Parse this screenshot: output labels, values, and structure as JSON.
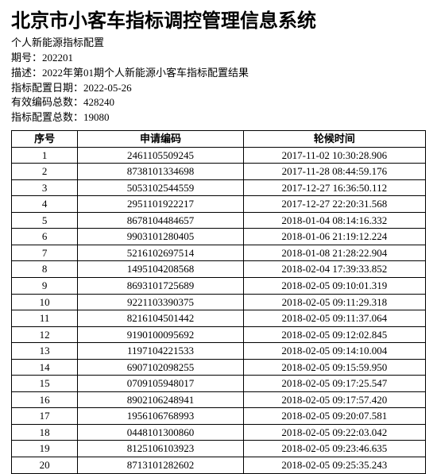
{
  "title": "北京市小客车指标调控管理信息系统",
  "meta": {
    "subtitle": "个人新能源指标配置",
    "period_label": "期号：",
    "period_value": "202201",
    "desc_label": "描述：",
    "desc_value": "2022年第01期个人新能源小客车指标配置结果",
    "date_label": "指标配置日期：",
    "date_value": "2022-05-26",
    "valid_label": "有效编码总数：",
    "valid_value": "428240",
    "total_label": "指标配置总数：",
    "total_value": "19080"
  },
  "table": {
    "columns": [
      "序号",
      "申请编码",
      "轮候时间"
    ],
    "rows": [
      [
        "1",
        "2461105509245",
        "2017-11-02 10:30:28.906"
      ],
      [
        "2",
        "8738101334698",
        "2017-11-28 08:44:59.176"
      ],
      [
        "3",
        "5053102544559",
        "2017-12-27 16:36:50.112"
      ],
      [
        "4",
        "2951101922217",
        "2017-12-27 22:20:31.568"
      ],
      [
        "5",
        "8678104484657",
        "2018-01-04 08:14:16.332"
      ],
      [
        "6",
        "9903101280405",
        "2018-01-06 21:19:12.224"
      ],
      [
        "7",
        "5216102697514",
        "2018-01-08 21:28:22.904"
      ],
      [
        "8",
        "1495104208568",
        "2018-02-04 17:39:33.852"
      ],
      [
        "9",
        "8693101725689",
        "2018-02-05 09:10:01.319"
      ],
      [
        "10",
        "9221103390375",
        "2018-02-05 09:11:29.318"
      ],
      [
        "11",
        "8216104501442",
        "2018-02-05 09:11:37.064"
      ],
      [
        "12",
        "9190100095692",
        "2018-02-05 09:12:02.845"
      ],
      [
        "13",
        "1197104221533",
        "2018-02-05 09:14:10.004"
      ],
      [
        "14",
        "6907102098255",
        "2018-02-05 09:15:59.950"
      ],
      [
        "15",
        "0709105948017",
        "2018-02-05 09:17:25.547"
      ],
      [
        "16",
        "8902106248941",
        "2018-02-05 09:17:57.420"
      ],
      [
        "17",
        "1956106768993",
        "2018-02-05 09:20:07.581"
      ],
      [
        "18",
        "0448101300860",
        "2018-02-05 09:22:03.042"
      ],
      [
        "19",
        "8125106103923",
        "2018-02-05 09:23:46.635"
      ],
      [
        "20",
        "8713101282602",
        "2018-02-05 09:25:35.243"
      ]
    ]
  },
  "style": {
    "background_color": "#ffffff",
    "text_color": "#000000",
    "border_color": "#000000",
    "title_fontsize": 24,
    "body_fontsize": 13,
    "font_family": "SimSun"
  }
}
